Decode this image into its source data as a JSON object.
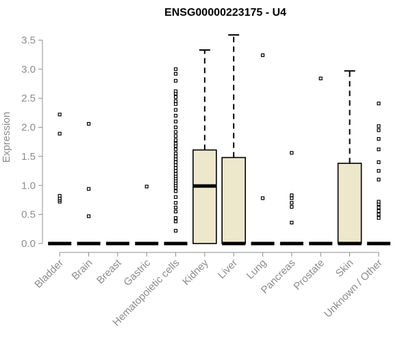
{
  "chart_data": {
    "type": "boxplot",
    "title": "ENSG00000223175 - U4",
    "xlabel": "",
    "ylabel": "Expression",
    "ylim": [
      0,
      3.6
    ],
    "yticks": [
      "0.0",
      "0.5",
      "1.0",
      "1.5",
      "2.0",
      "2.5",
      "3.0",
      "3.5"
    ],
    "grid": false,
    "box_fill": "#ede7cc",
    "categories": [
      "Bladder",
      "Brain",
      "Breast",
      "Gastric",
      "Hematopoietic cells",
      "Kidney",
      "Liver",
      "Lung",
      "Pancreas",
      "Prostate",
      "Skin",
      "Unknown / Other"
    ],
    "boxes": [
      {
        "q1": 0,
        "median": 0,
        "q3": 0,
        "whisker_low": 0,
        "whisker_high": 0,
        "outliers": [
          0.72,
          0.75,
          0.78,
          0.82,
          1.89,
          2.22
        ]
      },
      {
        "q1": 0,
        "median": 0,
        "q3": 0,
        "whisker_low": 0,
        "whisker_high": 0,
        "outliers": [
          0.47,
          0.94,
          2.06
        ]
      },
      {
        "q1": 0,
        "median": 0,
        "q3": 0,
        "whisker_low": 0,
        "whisker_high": 0,
        "outliers": []
      },
      {
        "q1": 0,
        "median": 0,
        "q3": 0,
        "whisker_low": 0,
        "whisker_high": 0,
        "outliers": [
          0.98
        ]
      },
      {
        "q1": 0,
        "median": 0,
        "q3": 0,
        "whisker_low": 0,
        "whisker_high": 0,
        "outliers": [
          0.22,
          0.38,
          0.44,
          0.55,
          0.62,
          0.7,
          0.8,
          0.9,
          0.96,
          1.0,
          1.04,
          1.08,
          1.12,
          1.16,
          1.2,
          1.25,
          1.3,
          1.35,
          1.4,
          1.45,
          1.5,
          1.55,
          1.62,
          1.68,
          1.72,
          1.78,
          1.85,
          1.92,
          2.0,
          2.1,
          2.2,
          2.3,
          2.4,
          2.45,
          2.52,
          2.58,
          2.62,
          2.8,
          2.92,
          3.0
        ]
      },
      {
        "q1": 0,
        "median": 0.99,
        "q3": 1.61,
        "whisker_low": 0,
        "whisker_high": 3.33,
        "outliers": []
      },
      {
        "q1": 0,
        "median": 0,
        "q3": 1.48,
        "whisker_low": 0,
        "whisker_high": 3.59,
        "outliers": []
      },
      {
        "q1": 0,
        "median": 0,
        "q3": 0,
        "whisker_low": 0,
        "whisker_high": 0,
        "outliers": [
          0.78,
          3.24
        ]
      },
      {
        "q1": 0,
        "median": 0,
        "q3": 0,
        "whisker_low": 0,
        "whisker_high": 0,
        "outliers": [
          0.36,
          0.63,
          0.7,
          0.78,
          0.83,
          1.56
        ]
      },
      {
        "q1": 0,
        "median": 0,
        "q3": 0,
        "whisker_low": 0,
        "whisker_high": 0,
        "outliers": [
          2.84
        ]
      },
      {
        "q1": 0,
        "median": 0,
        "q3": 1.38,
        "whisker_low": 0,
        "whisker_high": 2.97,
        "outliers": []
      },
      {
        "q1": 0,
        "median": 0,
        "q3": 0,
        "whisker_low": 0,
        "whisker_high": 0,
        "outliers": [
          0.44,
          0.5,
          0.56,
          0.62,
          0.68,
          0.72,
          1.1,
          1.25,
          1.4,
          1.62,
          1.8,
          1.95,
          2.02,
          2.41
        ]
      }
    ]
  }
}
